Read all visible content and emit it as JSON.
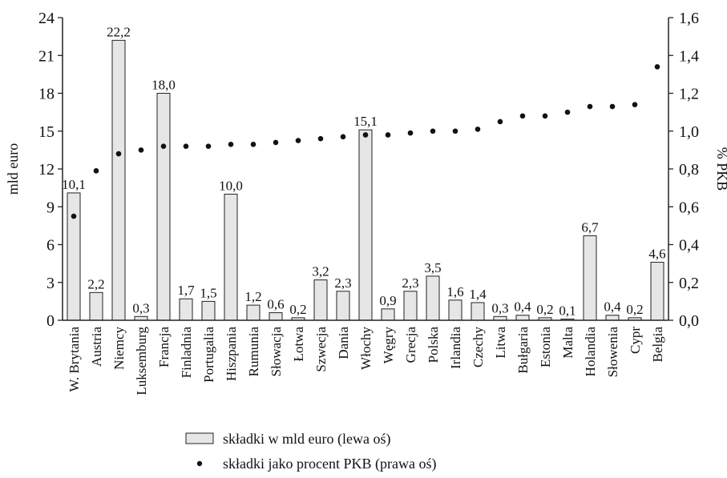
{
  "chart_data": {
    "type": "bar",
    "categories": [
      "W. Brytania",
      "Austria",
      "Niemcy",
      "Luksemburg",
      "Francja",
      "Finladnia",
      "Portugalia",
      "Hiszpania",
      "Rumunia",
      "Słowacja",
      "Łotwa",
      "Szwecja",
      "Dania",
      "Włochy",
      "Węgry",
      "Grecja",
      "Polska",
      "Irlandia",
      "Czechy",
      "Litwa",
      "Bułgaria",
      "Estonia",
      "Malta",
      "Holandia",
      "Słowenia",
      "Cypr",
      "Belgia"
    ],
    "series": [
      {
        "name": "składki w mld euro (lewa oś)",
        "kind": "bar",
        "axis": "left",
        "values": [
          10.1,
          2.2,
          22.2,
          0.3,
          18.0,
          1.7,
          1.5,
          10.0,
          1.2,
          0.6,
          0.2,
          3.2,
          2.3,
          15.1,
          0.9,
          2.3,
          3.5,
          1.6,
          1.4,
          0.3,
          0.4,
          0.2,
          0.1,
          6.7,
          0.4,
          0.2,
          4.6
        ],
        "labels": [
          "10,1",
          "2,2",
          "22,2",
          "0,3",
          "18,0",
          "1,7",
          "1,5",
          "10,0",
          "1,2",
          "0,6",
          "0,2",
          "3,2",
          "2,3",
          "15,1",
          "0,9",
          "2,3",
          "3,5",
          "1,6",
          "1,4",
          "0,3",
          "0,4",
          "0,2",
          "0,1",
          "6,7",
          "0,4",
          "0,2",
          "4,6"
        ]
      },
      {
        "name": "składki jako procent PKB (prawa oś)",
        "kind": "dot",
        "axis": "right",
        "values": [
          0.55,
          0.79,
          0.88,
          0.9,
          0.92,
          0.92,
          0.92,
          0.93,
          0.93,
          0.94,
          0.95,
          0.96,
          0.97,
          0.98,
          0.98,
          0.99,
          1.0,
          1.0,
          1.01,
          1.05,
          1.08,
          1.08,
          1.1,
          1.13,
          1.13,
          1.14,
          1.34
        ]
      }
    ],
    "ylabel": "mld euro",
    "y2label": "% PKB",
    "ylim": [
      0,
      24
    ],
    "y2lim": [
      0,
      1.6
    ],
    "yticks": [
      "0",
      "3",
      "6",
      "9",
      "12",
      "15",
      "18",
      "21",
      "24"
    ],
    "y2ticks": [
      "0,0",
      "0,2",
      "0,4",
      "0,6",
      "0,8",
      "1,0",
      "1,2",
      "1,4",
      "1,6"
    ],
    "grid": false,
    "legend_position": "bottom",
    "colors": {
      "bar_fill": "#e6e6e6",
      "bar_stroke": "#222222",
      "dot": "#111111",
      "axis": "#222222"
    }
  }
}
